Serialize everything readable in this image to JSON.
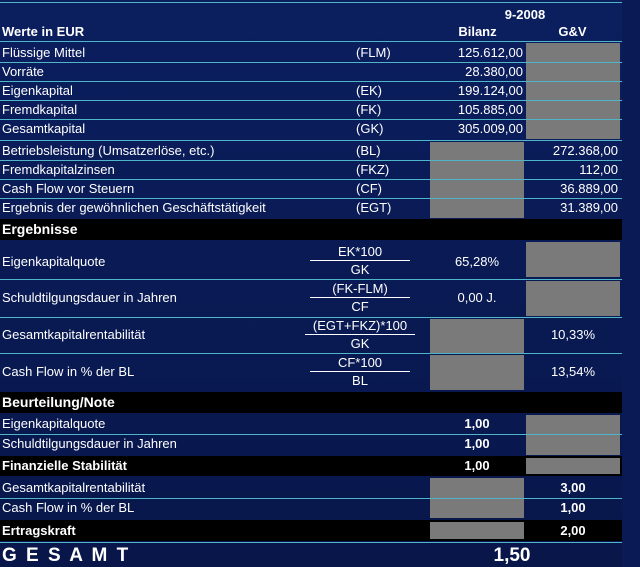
{
  "header": {
    "period": "9-2008",
    "title": "Werte in EUR",
    "col_bilanz": "Bilanz",
    "col_guv": "G&V"
  },
  "bilanz_rows": [
    {
      "label": "Flüssige Mittel",
      "code": "(FLM)",
      "bilanz": "125.612,00"
    },
    {
      "label": "Vorräte",
      "code": "",
      "bilanz": "28.380,00"
    },
    {
      "label": "Eigenkapital",
      "code": "(EK)",
      "bilanz": "199.124,00"
    },
    {
      "label": "Fremdkapital",
      "code": "(FK)",
      "bilanz": "105.885,00"
    },
    {
      "label": "Gesamtkapital",
      "code": "(GK)",
      "bilanz": "305.009,00"
    }
  ],
  "guv_rows": [
    {
      "label": "Betriebsleistung (Umsatzerlöse, etc.)",
      "code": "(BL)",
      "guv": "272.368,00"
    },
    {
      "label": "Fremdkapitalzinsen",
      "code": "(FKZ)",
      "guv": "112,00"
    },
    {
      "label": "Cash Flow vor Steuern",
      "code": "(CF)",
      "guv": "36.889,00"
    },
    {
      "label": "Ergebnis der gewöhnlichen Geschäftstätigkeit",
      "code": "(EGT)",
      "guv": "31.389,00"
    }
  ],
  "ergebnisse": {
    "title": "Ergebnisse",
    "rows": [
      {
        "label": "Eigenkapitalquote",
        "num": "EK*100",
        "den": "GK",
        "bilanz": "65,28%",
        "guv": ""
      },
      {
        "label": "Schuldtilgungsdauer in Jahren",
        "num": "(FK-FLM)",
        "den": "CF",
        "bilanz": "0,00 J.",
        "guv": ""
      },
      {
        "label": "Gesamtkapitalrentabilität",
        "num": "(EGT+FKZ)*100",
        "den": "GK",
        "bilanz": "",
        "guv": "10,33%"
      },
      {
        "label": "Cash Flow in % der BL",
        "num": "CF*100",
        "den": "BL",
        "bilanz": "",
        "guv": "13,54%"
      }
    ]
  },
  "beurteilung": {
    "title": "Beurteilung/Note",
    "rows": [
      {
        "label": "Eigenkapitalquote",
        "bilanz": "1,00"
      },
      {
        "label": "Schuldtilgungsdauer in Jahren",
        "bilanz": "1,00"
      }
    ],
    "stab_label": "Finanzielle Stabilität",
    "stab_value": "1,00",
    "rows2": [
      {
        "label": "Gesamtkapitalrentabilität",
        "guv": "3,00"
      },
      {
        "label": "Cash Flow in % der BL",
        "guv": "1,00"
      }
    ],
    "ertrag_label": "Ertragskraft",
    "ertrag_value": "2,00"
  },
  "gesamt": {
    "label": "G E S A M T",
    "value": "1,50"
  }
}
